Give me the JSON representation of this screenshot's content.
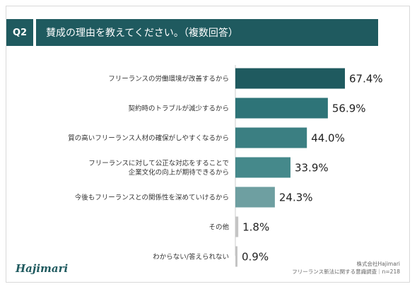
{
  "question": {
    "badge": "Q2",
    "title": "賛成の理由を教えてください。（複数回答）"
  },
  "chart_data": {
    "type": "bar",
    "orientation": "horizontal",
    "categories": [
      [
        "フリーランスの労働環境が改善するから"
      ],
      [
        "契約時のトラブルが減少するから"
      ],
      [
        "質の高いフリーランス人材の確保がしやすくなるから"
      ],
      [
        "フリーランスに対して公正な対応をすることで",
        "企業文化の向上が期待できるから"
      ],
      [
        "今後もフリーランスとの関係性を深めていけるから"
      ],
      [
        "その他"
      ],
      [
        "わからない/答えられない"
      ]
    ],
    "values": [
      67.4,
      56.9,
      44.0,
      33.9,
      24.3,
      1.8,
      0.9
    ],
    "value_labels": [
      "67.4%",
      "56.9%",
      "44.0%",
      "33.9%",
      "24.3%",
      "1.8%",
      "0.9%"
    ],
    "xlim": [
      0,
      100
    ],
    "colors": [
      "#1f5a5f",
      "#2e7478",
      "#3b7f82",
      "#45898b",
      "#6e9fa1",
      "#c4c4c4",
      "#c4c4c4"
    ]
  },
  "footer": {
    "brand": "Hajimari",
    "source_line1": "株式会社Hajimari",
    "source_line2": "フリーランス新法に関する意識調査｜n=218"
  }
}
